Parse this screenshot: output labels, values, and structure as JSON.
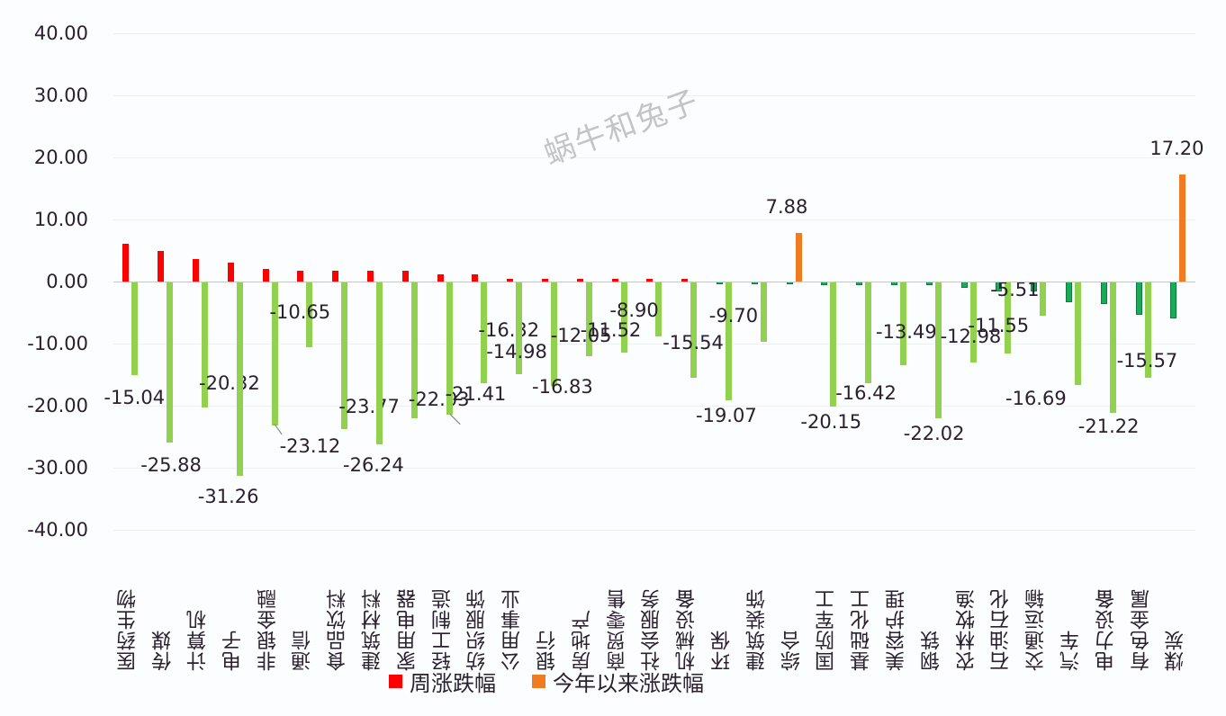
{
  "chart_data": {
    "type": "bar",
    "title": "",
    "xlabel": "",
    "ylabel": "",
    "ylim": [
      -40,
      40
    ],
    "yticks": [
      "40.00",
      "30.00",
      "20.00",
      "10.00",
      "0.00",
      "-10.00",
      "-20.00",
      "-30.00",
      "-40.00"
    ],
    "grid": true,
    "legend_position": "bottom",
    "categories": [
      "医药生物",
      "传媒",
      "计算机",
      "电子",
      "非银金融",
      "通信",
      "食品饮料",
      "建筑材料",
      "家用电器",
      "轻工制造",
      "纺织服饰",
      "公用事业",
      "银行",
      "房地产",
      "商贸零售",
      "社会服务",
      "机械设备",
      "环保",
      "建筑装饰",
      "综合",
      "国防军工",
      "基础化工",
      "美容护理",
      "钢铁",
      "农林牧渔",
      "石油石化",
      "交通运输",
      "汽车",
      "电力设备",
      "有色金属",
      "煤炭"
    ],
    "series": [
      {
        "name": "周涨跌幅",
        "color": "#ff0000",
        "negative_color": "#1aab58",
        "values": [
          6.1,
          4.9,
          3.6,
          3.1,
          2.0,
          1.7,
          1.7,
          1.7,
          1.7,
          1.1,
          1.1,
          0.3,
          0.3,
          0.3,
          0.3,
          0.3,
          0.3,
          -0.3,
          -0.3,
          -0.3,
          -0.6,
          -0.6,
          -0.6,
          -0.6,
          -1.0,
          -1.6,
          -1.6,
          -3.3,
          -3.6,
          -5.3,
          -5.9
        ]
      },
      {
        "name": "今年以来涨跌幅",
        "color": "#f07b20",
        "negative_color": "#92d050",
        "values": [
          -15.04,
          -25.88,
          -20.32,
          -31.26,
          -23.12,
          -10.65,
          -23.77,
          -26.24,
          -22.03,
          -21.41,
          -16.32,
          -14.98,
          -16.83,
          -12.05,
          -11.52,
          -8.9,
          -15.54,
          -19.07,
          -9.7,
          7.88,
          -20.15,
          -16.42,
          -13.49,
          -22.02,
          -12.98,
          -11.55,
          -5.51,
          -16.69,
          -21.22,
          -15.57,
          17.2
        ]
      }
    ],
    "data_labels": [
      "-15.04",
      "-25.88",
      "-20.32",
      "-31.26",
      "-23.12",
      "-10.65",
      "-23.77",
      "-26.24",
      "-22.03",
      "-21.41",
      "-16.32",
      "-14.98",
      "-16.83",
      "-12.05",
      "-11.52",
      "-8.90",
      "-15.54",
      "-19.07",
      "-9.70",
      "7.88",
      "-20.15",
      "-16.42",
      "-13.49",
      "-22.02",
      "-12.98",
      "-11.55",
      "-5.51",
      "-16.69",
      "-21.22",
      "-15.57",
      "17.20"
    ],
    "annotations": [
      "蜗牛和兔子"
    ]
  },
  "legend": [
    {
      "label": "周涨跌幅",
      "color": "#ff0000"
    },
    {
      "label": "今年以来涨跌幅",
      "color": "#f07b20"
    }
  ],
  "watermark": "蜗牛和兔子"
}
